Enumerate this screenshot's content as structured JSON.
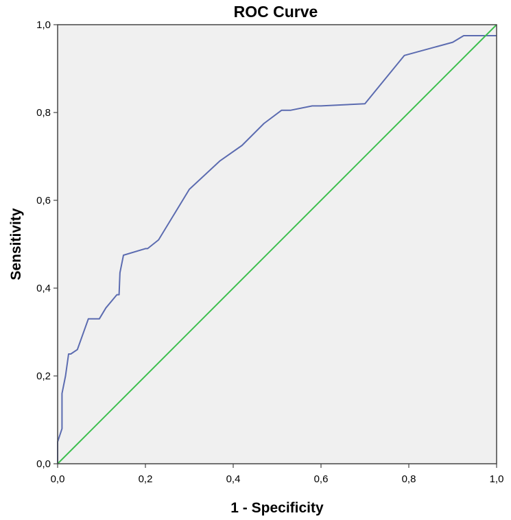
{
  "chart_data": {
    "type": "line",
    "title": "ROC Curve",
    "xlabel": "1 - Specificity",
    "ylabel": "Sensitivity",
    "xlim": [
      0,
      1
    ],
    "ylim": [
      0,
      1
    ],
    "x_ticks": [
      "0,0",
      "0,2",
      "0,4",
      "0,6",
      "0,8",
      "1,0"
    ],
    "y_ticks": [
      "0,0",
      "0,2",
      "0,4",
      "0,6",
      "0,8",
      "1,0"
    ],
    "x_tick_values": [
      0,
      0.2,
      0.4,
      0.6,
      0.8,
      1.0
    ],
    "y_tick_values": [
      0,
      0.2,
      0.4,
      0.6,
      0.8,
      1.0
    ],
    "grid": false,
    "plot_background": "#f0f0f0",
    "series": [
      {
        "color": "#5b6bb0",
        "x": [
          0.0,
          0.0,
          0.005,
          0.01,
          0.01,
          0.018,
          0.025,
          0.03,
          0.045,
          0.07,
          0.08,
          0.095,
          0.11,
          0.135,
          0.14,
          0.142,
          0.15,
          0.2,
          0.205,
          0.23,
          0.3,
          0.37,
          0.42,
          0.47,
          0.51,
          0.53,
          0.58,
          0.6,
          0.7,
          0.79,
          0.9,
          0.925,
          1.0
        ],
        "y": [
          0.0,
          0.05,
          0.065,
          0.08,
          0.16,
          0.2,
          0.25,
          0.25,
          0.26,
          0.33,
          0.33,
          0.33,
          0.355,
          0.385,
          0.385,
          0.435,
          0.475,
          0.49,
          0.49,
          0.51,
          0.625,
          0.69,
          0.725,
          0.775,
          0.805,
          0.805,
          0.815,
          0.815,
          0.82,
          0.93,
          0.96,
          0.975,
          0.975
        ]
      },
      {
        "color": "#3cbf4e",
        "x": [
          0,
          1
        ],
        "y": [
          0,
          1
        ]
      }
    ]
  }
}
